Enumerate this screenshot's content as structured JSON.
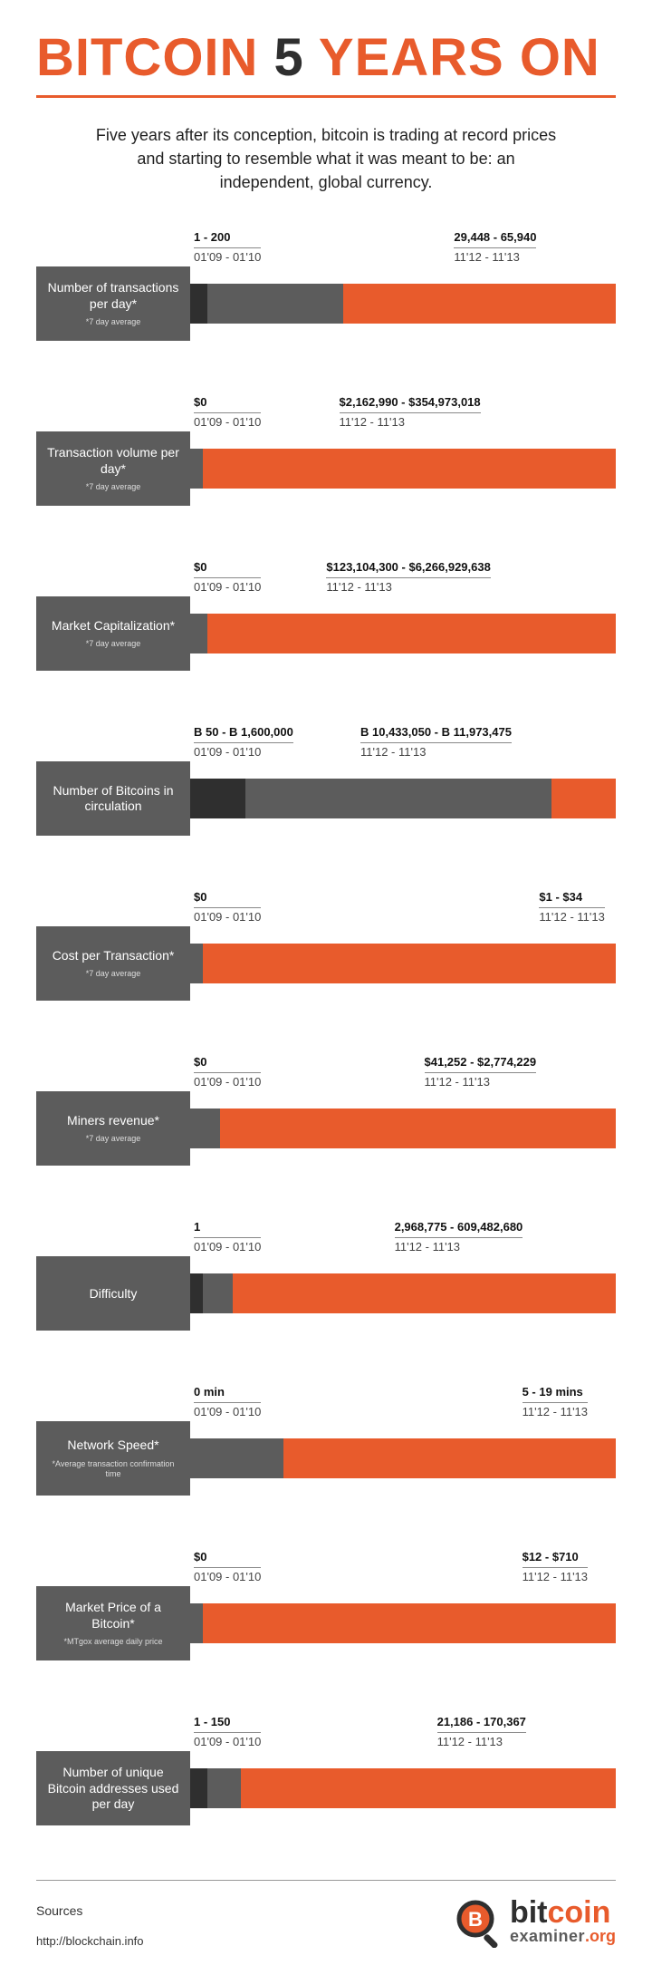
{
  "colors": {
    "orange": "#e85b2c",
    "dark_gray": "#2f2f2f",
    "mid_gray": "#5c5c5c",
    "label_gray": "#5c5c5c",
    "text": "#222222",
    "white": "#ffffff"
  },
  "title": {
    "pre": "BITCOIN ",
    "mid": "5",
    "post": " YEARS ON"
  },
  "subtitle": "Five years after its conception, bitcoin is trading at record prices and starting to resemble what it was meant to be: an independent, global currency.",
  "period_early": "01'09 - 01'10",
  "period_late": "11'12 - 11'13",
  "metrics": [
    {
      "label": "Number of transactions per day*",
      "note": "*7 day average",
      "early_value": "1 - 200",
      "late_value": "29,448 - 65,940",
      "segments": [
        {
          "color": "#2f2f2f",
          "pct": 4
        },
        {
          "color": "#5c5c5c",
          "pct": 32
        },
        {
          "color": "#e85b2c",
          "pct": 64
        }
      ],
      "right_label_pct": 62
    },
    {
      "label": "Transaction volume per day*",
      "note": "*7 day average",
      "early_value": "$0",
      "late_value": "$2,162,990 - $354,973,018",
      "segments": [
        {
          "color": "#5c5c5c",
          "pct": 3
        },
        {
          "color": "#e85b2c",
          "pct": 97
        }
      ],
      "right_label_pct": 35
    },
    {
      "label": "Market Capitalization*",
      "note": "*7 day average",
      "early_value": "$0",
      "late_value": "$123,104,300 - $6,266,929,638",
      "segments": [
        {
          "color": "#5c5c5c",
          "pct": 4
        },
        {
          "color": "#e85b2c",
          "pct": 96
        }
      ],
      "right_label_pct": 32
    },
    {
      "label": "Number of Bitcoins in circulation",
      "note": "",
      "early_value": "B 50 - B 1,600,000",
      "late_value": "B 10,433,050 - B 11,973,475",
      "segments": [
        {
          "color": "#2f2f2f",
          "pct": 13
        },
        {
          "color": "#5c5c5c",
          "pct": 72
        },
        {
          "color": "#e85b2c",
          "pct": 15
        }
      ],
      "right_label_pct": 40
    },
    {
      "label": "Cost per Transaction*",
      "note": "*7 day average",
      "early_value": "$0",
      "late_value": "$1 - $34",
      "segments": [
        {
          "color": "#5c5c5c",
          "pct": 3
        },
        {
          "color": "#e85b2c",
          "pct": 97
        }
      ],
      "right_label_pct": 82
    },
    {
      "label": "Miners revenue*",
      "note": "*7 day average",
      "early_value": "$0",
      "late_value": "$41,252 - $2,774,229",
      "segments": [
        {
          "color": "#5c5c5c",
          "pct": 7
        },
        {
          "color": "#e85b2c",
          "pct": 93
        }
      ],
      "right_label_pct": 55
    },
    {
      "label": "Difficulty",
      "note": "",
      "early_value": "1",
      "late_value": "2,968,775 - 609,482,680",
      "segments": [
        {
          "color": "#2f2f2f",
          "pct": 3
        },
        {
          "color": "#5c5c5c",
          "pct": 7
        },
        {
          "color": "#e85b2c",
          "pct": 90
        }
      ],
      "right_label_pct": 48
    },
    {
      "label": "Network Speed*",
      "note": "*Average transaction confirmation time",
      "early_value": "0 min",
      "late_value": "5 - 19 mins",
      "segments": [
        {
          "color": "#5c5c5c",
          "pct": 22
        },
        {
          "color": "#e85b2c",
          "pct": 78
        }
      ],
      "right_label_pct": 78
    },
    {
      "label": "Market Price of a Bitcoin*",
      "note": "*MTgox average daily price",
      "early_value": "$0",
      "late_value": "$12 - $710",
      "segments": [
        {
          "color": "#5c5c5c",
          "pct": 3
        },
        {
          "color": "#e85b2c",
          "pct": 97
        }
      ],
      "right_label_pct": 78
    },
    {
      "label": "Number of unique Bitcoin addresses used per day",
      "note": "",
      "early_value": "1 - 150",
      "late_value": "21,186 - 170,367",
      "segments": [
        {
          "color": "#2f2f2f",
          "pct": 4
        },
        {
          "color": "#5c5c5c",
          "pct": 8
        },
        {
          "color": "#e85b2c",
          "pct": 88
        }
      ],
      "right_label_pct": 58
    }
  ],
  "footer": {
    "sources_head": "Sources",
    "sources_url": "http://blockchain.info",
    "logo_main_pre": "bit",
    "logo_main_post": "coin",
    "logo_sub": "examiner",
    "logo_tld": ".org"
  }
}
